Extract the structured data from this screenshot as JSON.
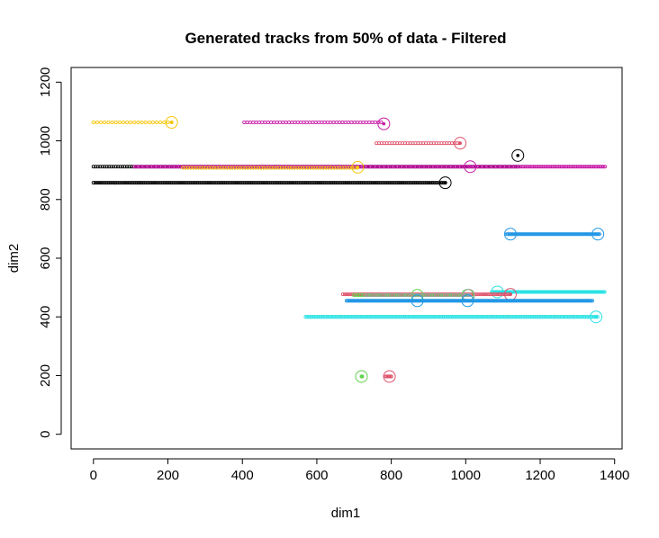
{
  "chart_data": {
    "type": "scatter",
    "title": "Generated tracks from 50% of data - Filtered",
    "xlabel": "dim1",
    "ylabel": "dim2",
    "xlim": [
      -60,
      1420
    ],
    "ylim": [
      -50,
      1250
    ],
    "xticks": [
      0,
      200,
      400,
      600,
      800,
      1000,
      1200,
      1400
    ],
    "yticks": [
      0,
      200,
      400,
      600,
      800,
      1000,
      1200
    ],
    "grid": false,
    "legend": "none",
    "tracks": [
      {
        "color": "#f5c710",
        "y": 1063,
        "x_start": 0,
        "x_end": 210,
        "step": 10,
        "end_marker": [
          210,
          1063
        ]
      },
      {
        "color": "#c71ba6",
        "y": 1063,
        "x_start": 405,
        "x_end": 780,
        "step": 8,
        "end_marker": [
          780,
          1058
        ]
      },
      {
        "color": "#df536b",
        "y": 992,
        "x_start": 760,
        "x_end": 985,
        "step": 7,
        "end_marker": [
          985,
          992
        ]
      },
      {
        "color": "#000000",
        "y": 912,
        "x_start": 0,
        "x_end": 1140,
        "step": 6,
        "end_marker": [
          1140,
          950
        ]
      },
      {
        "color": "#c71ba6",
        "y": 912,
        "x_start": 110,
        "x_end": 1375,
        "step": 4,
        "end_marker": [
          1012,
          912
        ]
      },
      {
        "color": "#f5c710",
        "y": 908,
        "x_start": 240,
        "x_end": 710,
        "step": 7,
        "end_marker": [
          710,
          910
        ]
      },
      {
        "color": "#000000",
        "y": 857,
        "x_start": 0,
        "x_end": 945,
        "step": 5,
        "end_marker": [
          945,
          857
        ]
      },
      {
        "color": "#2297e6",
        "y": 682,
        "x_start": 1110,
        "x_end": 1360,
        "step": 3,
        "end_marker": [
          1120,
          682
        ],
        "end_marker2": [
          1355,
          682
        ]
      },
      {
        "color": "#28e2e5",
        "y": 485,
        "x_start": 1070,
        "x_end": 1375,
        "step": 3,
        "end_marker": [
          1085,
          485
        ]
      },
      {
        "color": "#df536b",
        "y": 477,
        "x_start": 670,
        "x_end": 1120,
        "step": 5,
        "end_marker": [
          1120,
          477
        ]
      },
      {
        "color": "#61d04f",
        "y": 474,
        "x_start": 700,
        "x_end": 1010,
        "step": 6,
        "end_marker": [
          870,
          474
        ],
        "end_marker2": [
          1005,
          474
        ]
      },
      {
        "color": "#9e9e9e",
        "y": 474,
        "x_start": 730,
        "x_end": 1010,
        "step": 8,
        "end_marker": [
          1008,
          474
        ]
      },
      {
        "color": "#2297e6",
        "y": 455,
        "x_start": 680,
        "x_end": 1340,
        "step": 3,
        "end_marker": [
          870,
          455
        ],
        "end_marker2": [
          1005,
          455
        ]
      },
      {
        "color": "#28e2e5",
        "y": 400,
        "x_start": 570,
        "x_end": 1355,
        "step": 4,
        "end_marker": [
          1350,
          400
        ]
      },
      {
        "color": "#61d04f",
        "y": 197,
        "x_start": 720,
        "x_end": 722,
        "step": 1,
        "end_marker": [
          720,
          197
        ]
      },
      {
        "color": "#df536b",
        "y": 197,
        "x_start": 785,
        "x_end": 800,
        "step": 3,
        "end_marker": [
          795,
          197
        ]
      }
    ]
  }
}
